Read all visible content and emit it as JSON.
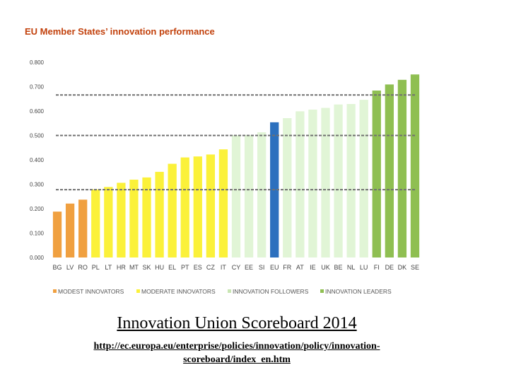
{
  "chart_data": {
    "type": "bar",
    "title": "EU Member States’ innovation performance",
    "categories": [
      "BG",
      "LV",
      "RO",
      "PL",
      "LT",
      "HR",
      "MT",
      "SK",
      "HU",
      "EL",
      "PT",
      "ES",
      "CZ",
      "IT",
      "CY",
      "EE",
      "SI",
      "EU",
      "FR",
      "AT",
      "IE",
      "UK",
      "BE",
      "NL",
      "LU",
      "FI",
      "DE",
      "DK",
      "SE"
    ],
    "values": [
      0.188,
      0.221,
      0.237,
      0.279,
      0.289,
      0.306,
      0.319,
      0.328,
      0.351,
      0.384,
      0.41,
      0.414,
      0.422,
      0.443,
      0.501,
      0.502,
      0.513,
      0.554,
      0.571,
      0.599,
      0.606,
      0.613,
      0.627,
      0.629,
      0.646,
      0.684,
      0.709,
      0.728,
      0.75
    ],
    "groups": [
      "modest",
      "modest",
      "modest",
      "moderate",
      "moderate",
      "moderate",
      "moderate",
      "moderate",
      "moderate",
      "moderate",
      "moderate",
      "moderate",
      "moderate",
      "moderate",
      "follower",
      "follower",
      "follower",
      "eu",
      "follower",
      "follower",
      "follower",
      "follower",
      "follower",
      "follower",
      "follower",
      "leader",
      "leader",
      "leader",
      "leader"
    ],
    "group_colors": {
      "modest": "#f0a040",
      "moderate": "#fbf13a",
      "follower": "#e1f5d6",
      "eu": "#2c70be",
      "leader": "#8fbf52"
    },
    "reference_lines": [
      0.278,
      0.5,
      0.666
    ],
    "ylim": [
      0,
      0.8
    ],
    "yticks": [
      "0.000",
      "0.100",
      "0.200",
      "0.300",
      "0.400",
      "0.500",
      "0.600",
      "0.700",
      "0.800"
    ],
    "xlabel": "",
    "ylabel": "",
    "legend": [
      {
        "key": "modest",
        "label": "MODEST INNOVATORS"
      },
      {
        "key": "moderate",
        "label": "MODERATE INNOVATORS"
      },
      {
        "key": "follower",
        "label": "INNOVATION FOLLOWERS"
      },
      {
        "key": "leader",
        "label": "INNOVATION LEADERS"
      }
    ],
    "legend_position": "bottom",
    "title_color": "#c2410c",
    "reference_line_color": "#707070",
    "legend_follower_color": "#c9e6b4"
  },
  "caption": {
    "title": "Innovation Union Scoreboard 2014",
    "link_line1": "http://ec.europa.eu/enterprise/policies/innovation/policy/innovation-",
    "link_line2": "scoreboard/index_en.htm"
  }
}
